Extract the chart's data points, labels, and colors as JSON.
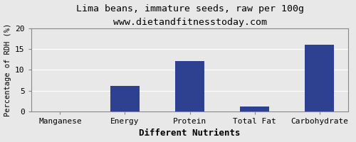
{
  "title": "Lima beans, immature seeds, raw per 100g",
  "subtitle": "www.dietandfitnesstoday.com",
  "xlabel": "Different Nutrients",
  "ylabel": "Percentage of RDH (%)",
  "categories": [
    "Manganese",
    "Energy",
    "Protein",
    "Total Fat",
    "Carbohydrate"
  ],
  "values": [
    0.0,
    6.2,
    12.1,
    1.1,
    16.1
  ],
  "bar_color": "#2e4090",
  "ylim": [
    0,
    20
  ],
  "yticks": [
    0,
    5,
    10,
    15,
    20
  ],
  "bg_color": "#e8e8e8",
  "plot_bg_color": "#e8e8e8",
  "title_fontsize": 9.5,
  "subtitle_fontsize": 8.5,
  "xlabel_fontsize": 9,
  "ylabel_fontsize": 7.5,
  "tick_fontsize": 8,
  "bar_width": 0.45
}
